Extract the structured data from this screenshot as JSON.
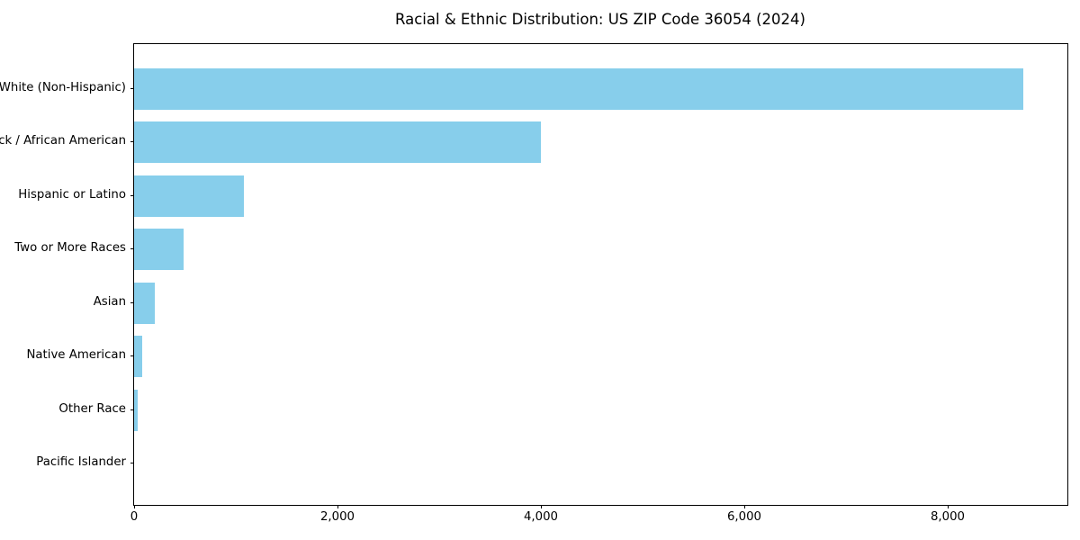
{
  "title": "Racial & Ethnic Distribution: US ZIP Code 36054 (2024)",
  "chart_data": {
    "type": "bar",
    "orientation": "horizontal",
    "title": "Racial & Ethnic Distribution: US ZIP Code 36054 (2024)",
    "categories": [
      "White (Non-Hispanic)",
      "Black / African American",
      "Hispanic or Latino",
      "Two or More Races",
      "Asian",
      "Native American",
      "Other Race",
      "Pacific Islander"
    ],
    "values": [
      8740,
      4000,
      1080,
      485,
      200,
      75,
      35,
      0
    ],
    "xlabel": "",
    "ylabel": "",
    "xlim": [
      0,
      9177
    ],
    "xticks": [
      0,
      2000,
      4000,
      6000,
      8000
    ],
    "xtick_labels": [
      "0",
      "2,000",
      "4,000",
      "6,000",
      "8,000"
    ],
    "bar_color": "#87CEEB",
    "grid": false,
    "legend_position": "none"
  }
}
